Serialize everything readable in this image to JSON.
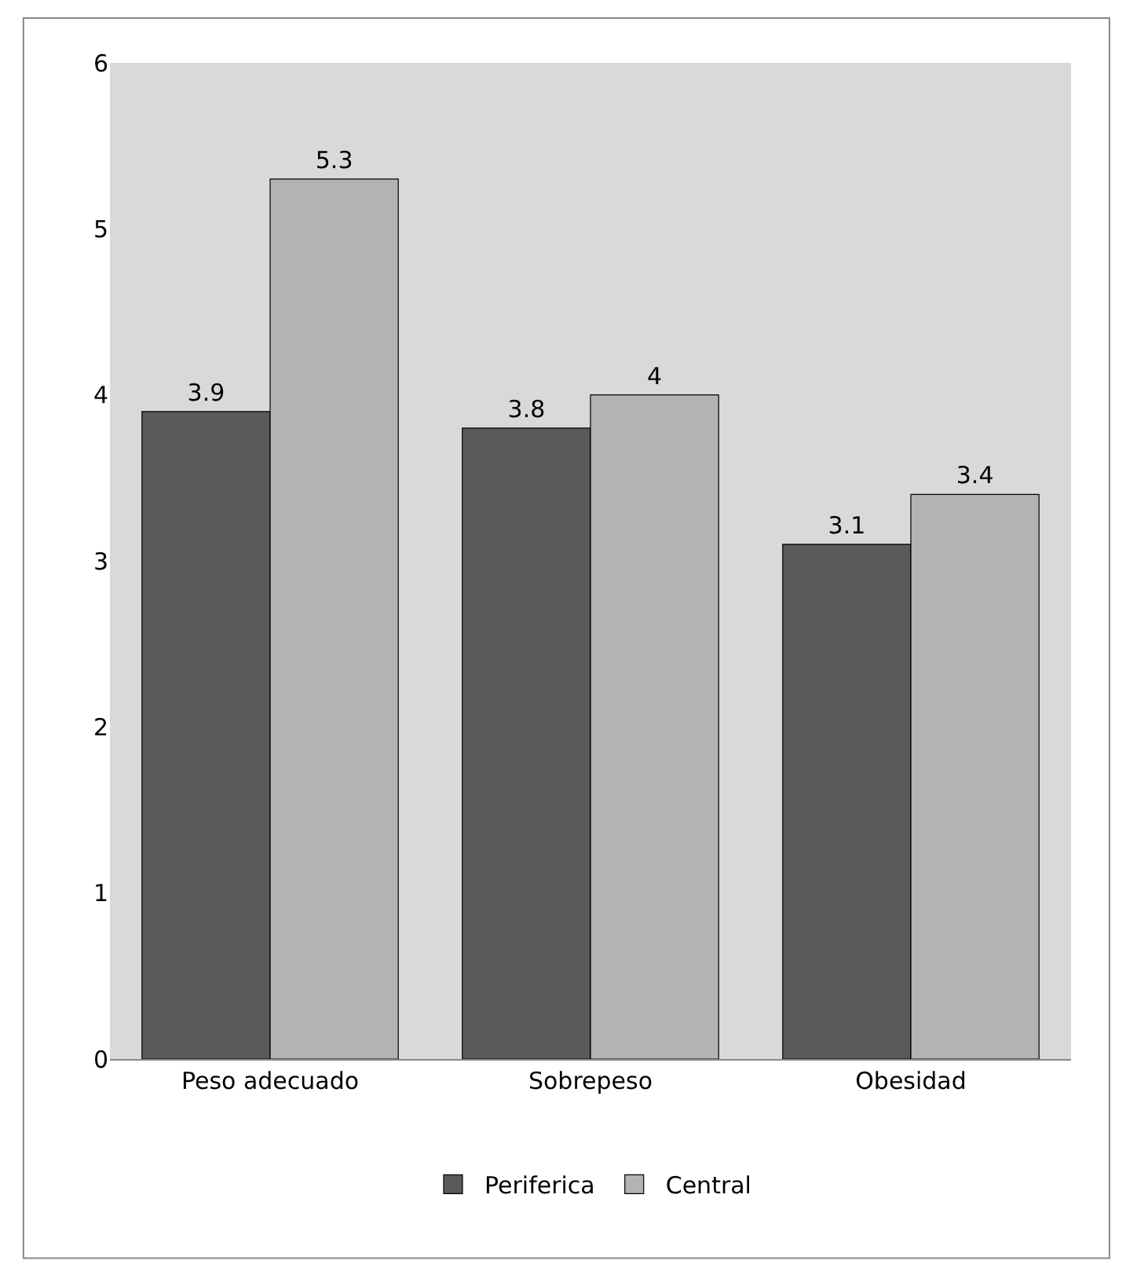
{
  "chart_data": {
    "type": "bar",
    "categories": [
      "Peso adecuado",
      "Sobrepeso",
      "Obesidad"
    ],
    "series": [
      {
        "name": "Periferica",
        "color": "#5a5a5a",
        "values": [
          3.9,
          3.8,
          3.1
        ]
      },
      {
        "name": "Central",
        "color": "#b3b3b3",
        "values": [
          5.3,
          4,
          3.4
        ]
      }
    ],
    "ylim": [
      0,
      6
    ],
    "yticks": [
      0,
      1,
      2,
      3,
      4,
      5,
      6
    ],
    "data_labels": true,
    "grid": false,
    "legend": "bottom"
  }
}
